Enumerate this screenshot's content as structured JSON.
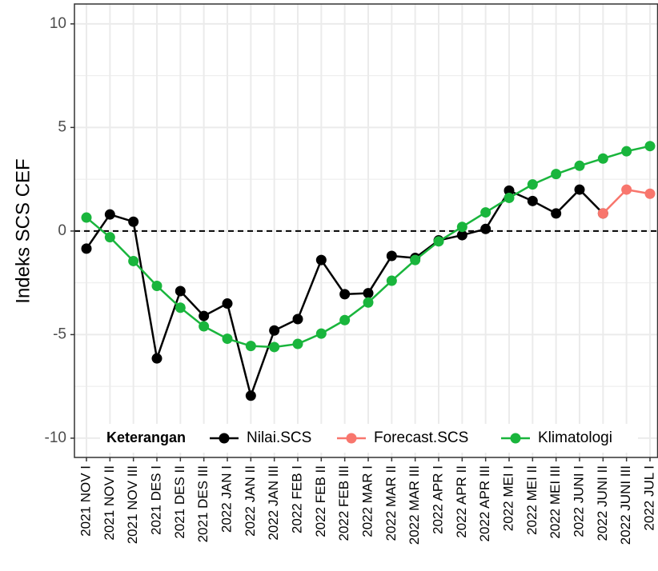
{
  "chart_data": {
    "type": "line",
    "y_label": "Indeks SCS CEF",
    "categories": [
      "2021 NOV I",
      "2021 NOV II",
      "2021 NOV III",
      "2021 DES I",
      "2021 DES II",
      "2021 DES III",
      "2022 JAN I",
      "2022 JAN II",
      "2022 JAN III",
      "2022 FEB I",
      "2022 FEB II",
      "2022 FEB III",
      "2022 MAR I",
      "2022 MAR II",
      "2022 MAR III",
      "2022 APR I",
      "2022 APR II",
      "2022 APR III",
      "2022 MEI I",
      "2022 MEI II",
      "2022 MEI III",
      "2022 JUNI I",
      "2022 JUNI II",
      "2022 JUNI III",
      "2022 JUL I"
    ],
    "series": [
      {
        "name": "Nilai.SCS",
        "color": "#000000",
        "values": [
          -0.85,
          0.8,
          0.45,
          -6.15,
          -2.9,
          -4.1,
          -3.5,
          -7.95,
          -4.8,
          -4.25,
          -1.4,
          -3.05,
          -3.0,
          -1.2,
          -1.3,
          -0.45,
          -0.2,
          0.1,
          1.95,
          1.45,
          0.85,
          2.0,
          0.85,
          null,
          null
        ]
      },
      {
        "name": "Forecast.SCS",
        "color": "#f8766d",
        "values": [
          null,
          null,
          null,
          null,
          null,
          null,
          null,
          null,
          null,
          null,
          null,
          null,
          null,
          null,
          null,
          null,
          null,
          null,
          null,
          null,
          null,
          null,
          0.85,
          2.0,
          1.8
        ]
      },
      {
        "name": "Klimatologi",
        "color": "#19b53c",
        "values": [
          0.65,
          -0.3,
          -1.45,
          -2.65,
          -3.7,
          -4.6,
          -5.2,
          -5.55,
          -5.6,
          -5.45,
          -4.95,
          -4.3,
          -3.45,
          -2.4,
          -1.4,
          -0.5,
          0.2,
          0.9,
          1.6,
          2.25,
          2.75,
          3.15,
          3.5,
          3.85,
          4.1
        ]
      }
    ],
    "legend_title": "Keterangan",
    "legend_position": "bottom-inside",
    "ylim": [
      -10.93,
      10.96
    ],
    "yticks": [
      -10,
      -5,
      0,
      5,
      10
    ],
    "y_minor_grid": [
      -7.5,
      -2.5,
      2.5,
      7.5
    ],
    "hline": 0,
    "grid": true
  }
}
